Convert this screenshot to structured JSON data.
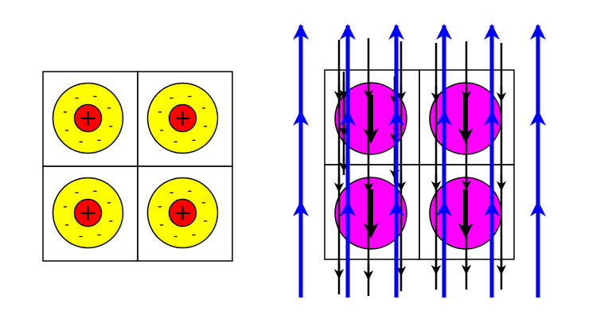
{
  "colors": {
    "background": "#ffffff",
    "grid_line": "#000000",
    "electron_cloud": "#ffff00",
    "nucleus": "#ff0000",
    "magnetic_atom": "#ff00ff",
    "field_line_blue": "#0000ff",
    "field_line_black": "#000000"
  },
  "left_panel": {
    "rows": 2,
    "cols": 2,
    "atom": {
      "nucleus_sign": "+",
      "electron_sign": "-",
      "electron_count": 8
    }
  },
  "right_panel": {
    "rows": 2,
    "cols": 2,
    "atom_arrow_direction": "down",
    "blue_lines": {
      "count": 6,
      "direction": "up"
    },
    "black_lines": {
      "count": 8,
      "direction": "down"
    }
  }
}
